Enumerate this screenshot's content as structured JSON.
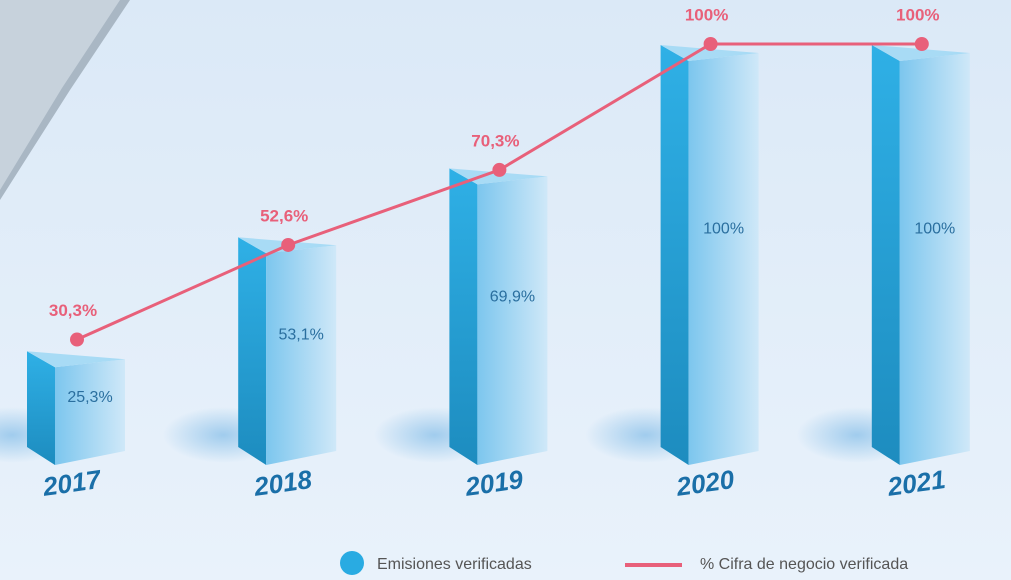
{
  "chart_data": {
    "type": "bar",
    "categories": [
      "2017",
      "2018",
      "2019",
      "2020",
      "2021"
    ],
    "series": [
      {
        "name": "Emisiones verificadas",
        "type": "bar",
        "color": "#29abe2",
        "values": [
          25.3,
          53.1,
          69.9,
          100,
          100
        ],
        "value_labels": [
          "25,3%",
          "53,1%",
          "69,9%",
          "100%",
          "100%"
        ]
      },
      {
        "name": "% Cifra de negocio verificada",
        "type": "line",
        "color": "#e8607a",
        "values": [
          30.3,
          52.6,
          70.3,
          100,
          100
        ],
        "value_labels": [
          "30,3%",
          "52,6%",
          "70,3%",
          "100%",
          "100%"
        ]
      }
    ]
  }
}
